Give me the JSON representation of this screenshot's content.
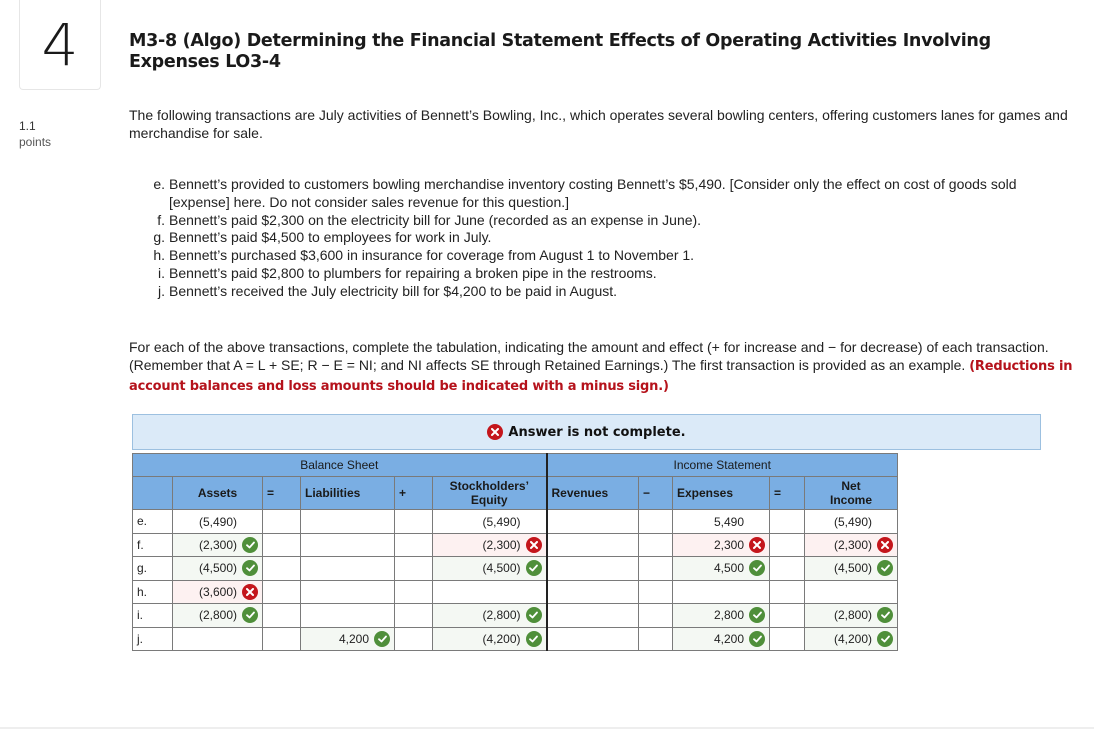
{
  "question": {
    "number": "4",
    "points_value": "1.1",
    "points_label": "points",
    "title": "M3-8 (Algo) Determining the Financial Statement Effects of Operating Activities Involving Expenses LO3-4",
    "intro": "The following transactions are July activities of Bennett’s Bowling, Inc., which operates several bowling centers, offering customers lanes for games and merchandise for sale.",
    "transactions": [
      {
        "label": "e.",
        "text": "Bennett’s provided to customers bowling merchandise inventory costing Bennett’s $5,490. [Consider only the effect on cost of goods sold [expense] here. Do not consider sales revenue for this question.]"
      },
      {
        "label": "f.",
        "text": "Bennett’s paid $2,300 on the electricity bill for June (recorded as an expense in June)."
      },
      {
        "label": "g.",
        "text": "Bennett’s paid $4,500 to employees for work in July."
      },
      {
        "label": "h.",
        "text": "Bennett’s purchased $3,600 in insurance for coverage from August 1 to November 1."
      },
      {
        "label": "i.",
        "text": "Bennett’s paid $2,800 to plumbers for repairing a broken pipe in the restrooms."
      },
      {
        "label": "j.",
        "text": "Bennett’s received the July electricity bill for $4,200 to be paid in August."
      }
    ],
    "instructions": "For each of the above transactions, complete the tabulation, indicating the amount and effect (+ for increase and − for decrease) of each transaction. (Remember that A = L + SE; R − E = NI; and NI affects SE through Retained Earnings.) The first transaction is provided as an example.",
    "instructions_emphasis": "(Reductions in account balances and loss amounts should be indicated with a minus sign.)"
  },
  "feedback": {
    "status_icon": "x-circle-icon",
    "message": "Answer is not complete."
  },
  "table": {
    "groups": {
      "balance_sheet": "Balance Sheet",
      "income_statement": "Income Statement"
    },
    "headers": {
      "assets": "Assets",
      "eq1": "=",
      "liabilities": "Liabilities",
      "plus": "+",
      "se_line1": "Stockholders’",
      "se_line2": "Equity",
      "revenues": "Revenues",
      "minus": "−",
      "expenses": "Expenses",
      "eq2": "=",
      "ni_line1": "Net",
      "ni_line2": "Income"
    },
    "colors": {
      "header_bg": "#7aaee3",
      "correct": "#4f8f3a",
      "incorrect": "#c4161c",
      "banner_bg": "#dbeaf8"
    },
    "rows": [
      {
        "label": "e.",
        "assets": {
          "v": "(5,490)",
          "s": ""
        },
        "liabilities": {
          "v": "",
          "s": ""
        },
        "se": {
          "v": "(5,490)",
          "s": ""
        },
        "revenues": {
          "v": "",
          "s": ""
        },
        "expenses": {
          "v": "5,490",
          "s": ""
        },
        "net_income": {
          "v": "(5,490)",
          "s": ""
        }
      },
      {
        "label": "f.",
        "assets": {
          "v": "(2,300)",
          "s": "correct"
        },
        "liabilities": {
          "v": "",
          "s": ""
        },
        "se": {
          "v": "(2,300)",
          "s": "incorrect"
        },
        "revenues": {
          "v": "",
          "s": ""
        },
        "expenses": {
          "v": "2,300",
          "s": "incorrect"
        },
        "net_income": {
          "v": "(2,300)",
          "s": "incorrect"
        }
      },
      {
        "label": "g.",
        "assets": {
          "v": "(4,500)",
          "s": "correct"
        },
        "liabilities": {
          "v": "",
          "s": ""
        },
        "se": {
          "v": "(4,500)",
          "s": "correct"
        },
        "revenues": {
          "v": "",
          "s": ""
        },
        "expenses": {
          "v": "4,500",
          "s": "correct"
        },
        "net_income": {
          "v": "(4,500)",
          "s": "correct"
        }
      },
      {
        "label": "h.",
        "assets": {
          "v": "(3,600)",
          "s": "incorrect"
        },
        "liabilities": {
          "v": "",
          "s": ""
        },
        "se": {
          "v": "",
          "s": ""
        },
        "revenues": {
          "v": "",
          "s": ""
        },
        "expenses": {
          "v": "",
          "s": ""
        },
        "net_income": {
          "v": "",
          "s": ""
        }
      },
      {
        "label": "i.",
        "assets": {
          "v": "(2,800)",
          "s": "correct"
        },
        "liabilities": {
          "v": "",
          "s": ""
        },
        "se": {
          "v": "(2,800)",
          "s": "correct"
        },
        "revenues": {
          "v": "",
          "s": ""
        },
        "expenses": {
          "v": "2,800",
          "s": "correct"
        },
        "net_income": {
          "v": "(2,800)",
          "s": "correct"
        }
      },
      {
        "label": "j.",
        "assets": {
          "v": "",
          "s": ""
        },
        "liabilities": {
          "v": "4,200",
          "s": "correct"
        },
        "se": {
          "v": "(4,200)",
          "s": "correct"
        },
        "revenues": {
          "v": "",
          "s": ""
        },
        "expenses": {
          "v": "4,200",
          "s": "correct"
        },
        "net_income": {
          "v": "(4,200)",
          "s": "correct"
        }
      }
    ]
  }
}
